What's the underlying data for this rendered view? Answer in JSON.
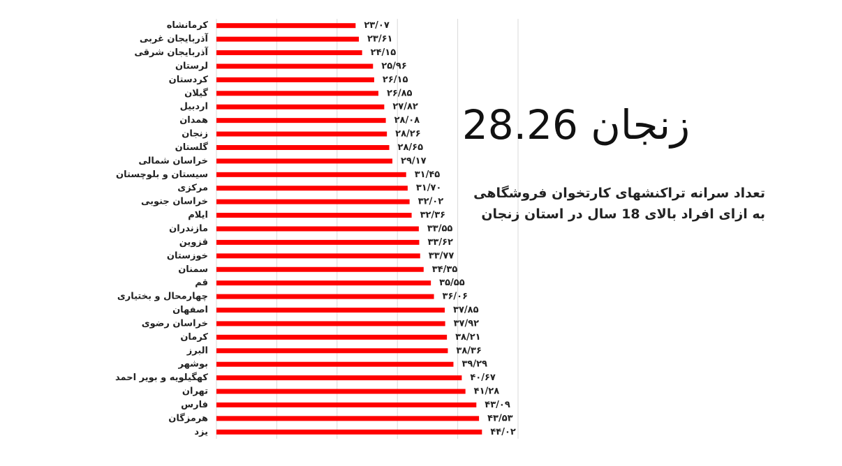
{
  "chart_data": {
    "type": "barh",
    "title": "زنجان 28.26",
    "subtitle": [
      "تعداد سرانه تراکنشهای کارتخوان فروشگاهی",
      "به ازای افراد بالای 18 سال در استان زنجان"
    ],
    "categories": [
      "کرمانشاه",
      "آذربایجان غربی",
      "آذربایجان شرقی",
      "لرستان",
      "کردستان",
      "گیلان",
      "اردبیل",
      "همدان",
      "زنجان",
      "گلستان",
      "خراسان شمالی",
      "سیستان و بلوچستان",
      "مرکزی",
      "خراسان جنوبی",
      "ایلام",
      "مازندران",
      "قزوین",
      "خوزستان",
      "سمنان",
      "قم",
      "چهارمحال و بختیاری",
      "اصفهان",
      "خراسان رضوی",
      "کرمان",
      "البرز",
      "بوشهر",
      "کهگیلویه و بویر احمد",
      "تهران",
      "فارس",
      "هرمزگان",
      "یزد"
    ],
    "values": [
      23.07,
      23.61,
      24.15,
      25.96,
      26.15,
      26.85,
      27.82,
      28.08,
      28.26,
      28.65,
      29.17,
      31.45,
      31.7,
      32.02,
      32.36,
      33.55,
      33.62,
      33.77,
      34.35,
      35.55,
      36.06,
      37.85,
      37.92,
      38.21,
      38.36,
      39.29,
      40.67,
      41.28,
      43.09,
      43.53,
      44.02
    ],
    "value_labels": [
      "۲۳/۰۷",
      "۲۳/۶۱",
      "۲۴/۱۵",
      "۲۵/۹۶",
      "۲۶/۱۵",
      "۲۶/۸۵",
      "۲۷/۸۲",
      "۲۸/۰۸",
      "۲۸/۲۶",
      "۲۸/۶۵",
      "۲۹/۱۷",
      "۳۱/۴۵",
      "۳۱/۷۰",
      "۳۲/۰۲",
      "۳۲/۳۶",
      "۳۳/۵۵",
      "۳۳/۶۲",
      "۳۳/۷۷",
      "۳۴/۳۵",
      "۳۵/۵۵",
      "۳۶/۰۶",
      "۳۷/۸۵",
      "۳۷/۹۲",
      "۳۸/۲۱",
      "۳۸/۳۶",
      "۳۹/۲۹",
      "۴۰/۶۷",
      "۴۱/۲۸",
      "۴۳/۰۹",
      "۴۳/۵۳",
      "۴۴/۰۲"
    ],
    "color": "#ff0000",
    "xlim": [
      0,
      50
    ],
    "xticks": [
      0,
      10,
      20,
      30,
      40,
      50
    ],
    "grid": true
  }
}
